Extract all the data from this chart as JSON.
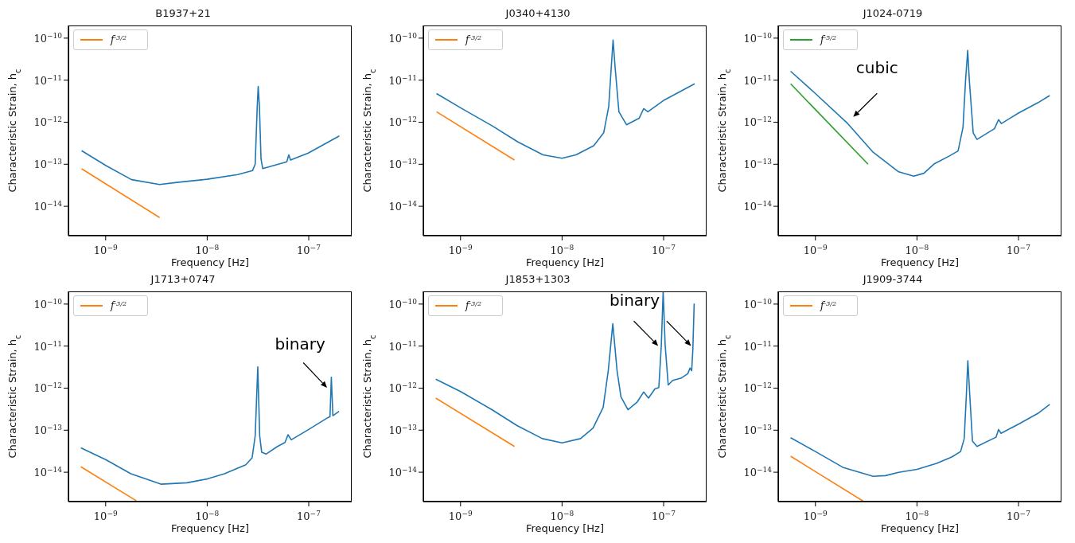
{
  "chart_data": [
    {
      "type": "line",
      "title": "B1937+21",
      "xlabel": "Frequency [Hz]",
      "ylabel": "Characteristic Strain, h$_{c}$",
      "log": "xy",
      "legend": "top left",
      "xlim": [
        4.3e-10,
        2.65e-07
      ],
      "ylim": [
        2e-15,
        2e-10
      ],
      "xticks": [
        {
          "value": 1e-09,
          "label": "10$^{−9}$"
        },
        {
          "value": 1e-08,
          "label": "10$^{−8}$"
        },
        {
          "value": 1e-07,
          "label": "10$^{−7}$"
        }
      ],
      "yticks": [
        {
          "value": 1e-14,
          "label": "10$^{−14}$"
        },
        {
          "value": 1e-13,
          "label": "10$^{−13}$"
        },
        {
          "value": 1e-12,
          "label": "10$^{−12}$"
        },
        {
          "value": 1e-11,
          "label": "10$^{−11}$"
        },
        {
          "value": 1e-10,
          "label": "10$^{−10}$"
        }
      ],
      "series": [
        {
          "color": "#1f77b4",
          "x": [
            5.8e-10,
            1e-09,
            1.8e-09,
            3.4e-09,
            5e-09,
            1e-08,
            2e-08,
            2.8e-08,
            2.97e-08,
            3.11e-08,
            3.18e-08,
            3.27e-08,
            3.39e-08,
            3.52e-08,
            6.08e-08,
            6.36e-08,
            6.62e-08,
            9.9e-08,
            2e-07
          ],
          "values": [
            2.1e-13,
            9.4e-14,
            4.3e-14,
            3.3e-14,
            3.7e-14,
            4.4e-14,
            5.7e-14,
            7.1e-14,
            1e-13,
            2.3e-12,
            7.1e-12,
            2.3e-12,
            1.35e-13,
            7.9e-14,
            1.14e-13,
            1.67e-13,
            1.26e-13,
            1.85e-13,
            4.7e-13
          ]
        },
        {
          "name": "f$^{-3/2}$",
          "color": "#ff7f0e",
          "x": [
            5.8e-10,
            3.4e-09
          ],
          "values": [
            7.8e-14,
            5.4e-15
          ]
        }
      ]
    },
    {
      "type": "line",
      "title": "J0340+4130",
      "xlabel": "Frequency [Hz]",
      "ylabel": "Characteristic Strain, h$_{c}$",
      "log": "xy",
      "legend": "top left",
      "xlim": [
        4.3e-10,
        2.65e-07
      ],
      "ylim": [
        2e-15,
        2e-10
      ],
      "xticks": [
        {
          "value": 1e-09,
          "label": "10$^{−9}$"
        },
        {
          "value": 1e-08,
          "label": "10$^{−8}$"
        },
        {
          "value": 1e-07,
          "label": "10$^{−7}$"
        }
      ],
      "yticks": [
        {
          "value": 1e-14,
          "label": "10$^{−14}$"
        },
        {
          "value": 1e-13,
          "label": "10$^{−13}$"
        },
        {
          "value": 1e-12,
          "label": "10$^{−12}$"
        },
        {
          "value": 1e-11,
          "label": "10$^{−11}$"
        },
        {
          "value": 1e-10,
          "label": "10$^{−10}$"
        }
      ],
      "series": [
        {
          "color": "#1f77b4",
          "x": [
            5.8e-10,
            1e-09,
            2.07e-09,
            3.67e-09,
            6.5e-09,
            1e-08,
            1.37e-08,
            2.05e-08,
            2.57e-08,
            2.88e-08,
            3.05e-08,
            3.18e-08,
            3.33e-08,
            3.63e-08,
            4.31e-08,
            5.74e-08,
            6.36e-08,
            7e-08,
            1.02e-07,
            2.02e-07
          ],
          "values": [
            4.8e-12,
            2.2e-12,
            8.1e-13,
            3.4e-13,
            1.67e-13,
            1.39e-13,
            1.67e-13,
            2.76e-13,
            5.6e-13,
            2.36e-12,
            2e-11,
            9e-11,
            2e-11,
            1.77e-12,
            8.7e-13,
            1.24e-12,
            2.1e-12,
            1.77e-12,
            3.4e-12,
            8.2e-12
          ]
        },
        {
          "name": "f$^{-3/2}$",
          "color": "#ff7f0e",
          "x": [
            5.8e-10,
            3.4e-09
          ],
          "values": [
            1.77e-12,
            1.26e-13
          ]
        }
      ]
    },
    {
      "type": "line",
      "title": "J1024-0719",
      "xlabel": "Frequency [Hz]",
      "ylabel": "Characteristic Strain, h$_{c}$",
      "log": "xy",
      "legend": "top left",
      "xlim": [
        4.3e-10,
        2.65e-07
      ],
      "ylim": [
        2e-15,
        2e-10
      ],
      "xticks": [
        {
          "value": 1e-09,
          "label": "10$^{−9}$"
        },
        {
          "value": 1e-08,
          "label": "10$^{−8}$"
        },
        {
          "value": 1e-07,
          "label": "10$^{−7}$"
        }
      ],
      "yticks": [
        {
          "value": 1e-14,
          "label": "10$^{−14}$"
        },
        {
          "value": 1e-13,
          "label": "10$^{−13}$"
        },
        {
          "value": 1e-12,
          "label": "10$^{−12}$"
        },
        {
          "value": 1e-11,
          "label": "10$^{−11}$"
        },
        {
          "value": 1e-10,
          "label": "10$^{−10}$"
        }
      ],
      "series": [
        {
          "color": "#1f77b4",
          "x": [
            5.7e-10,
            1e-09,
            2.08e-09,
            3.7e-09,
            6.6e-09,
            9.3e-09,
            1.17e-08,
            1.47e-08,
            2.07e-08,
            2.54e-08,
            2.84e-08,
            3.01e-08,
            3.16e-08,
            3.28e-08,
            3.58e-08,
            3.9e-08,
            5.8e-08,
            6.36e-08,
            6.8e-08,
            1e-07,
            1.55e-07,
            2.03e-07
          ],
          "values": [
            1.63e-11,
            4.8e-12,
            9.3e-13,
            1.93e-13,
            6.6e-14,
            5.2e-14,
            6.1e-14,
            1.01e-13,
            1.56e-13,
            2.07e-13,
            7.5e-13,
            9.9e-12,
            5.1e-11,
            9.9e-12,
            5.6e-13,
            3.9e-13,
            7e-13,
            1.15e-12,
            9.3e-13,
            1.65e-12,
            2.9e-12,
            4.3e-12
          ]
        },
        {
          "name": "f$^{-5/2}$",
          "color": "#2ca02c",
          "x": [
            5.7e-10,
            3.3e-09
          ],
          "values": [
            8.2e-12,
            1e-13
          ]
        }
      ],
      "annotations": [
        "cubic"
      ]
    },
    {
      "type": "line",
      "title": "J1713+0747",
      "xlabel": "Frequency [Hz]",
      "ylabel": "Characteristic Strain, h$_{c}$",
      "log": "xy",
      "legend": "top left",
      "xlim": [
        4.3e-10,
        2.65e-07
      ],
      "ylim": [
        2e-15,
        2e-10
      ],
      "xticks": [
        {
          "value": 1e-09,
          "label": "10$^{−9}$"
        },
        {
          "value": 1e-08,
          "label": "10$^{−8}$"
        },
        {
          "value": 1e-07,
          "label": "10$^{−7}$"
        }
      ],
      "yticks": [
        {
          "value": 1e-14,
          "label": "10$^{−14}$"
        },
        {
          "value": 1e-13,
          "label": "10$^{−13}$"
        },
        {
          "value": 1e-12,
          "label": "10$^{−12}$"
        },
        {
          "value": 1e-11,
          "label": "10$^{−11}$"
        },
        {
          "value": 1e-10,
          "label": "10$^{−10}$"
        }
      ],
      "series": [
        {
          "color": "#1f77b4",
          "x": [
            5.7e-10,
            1e-09,
            1.77e-09,
            3.5e-09,
            6.3e-09,
            1e-08,
            1.48e-08,
            2.4e-08,
            2.77e-08,
            2.97e-08,
            3.15e-08,
            3.29e-08,
            3.44e-08,
            3.8e-08,
            4.92e-08,
            5.84e-08,
            6.25e-08,
            6.73e-08,
            1e-07,
            1.55e-07,
            1.62e-07,
            1.67e-07,
            1.73e-07,
            1.99e-07
          ],
          "values": [
            3.8e-14,
            2e-14,
            9.2e-15,
            5.2e-15,
            5.6e-15,
            6.9e-15,
            9.2e-15,
            1.5e-14,
            2.2e-14,
            7.3e-14,
            3.2e-12,
            7.3e-14,
            3e-14,
            2.7e-14,
            4.1e-14,
            5.1e-14,
            7.8e-14,
            5.9e-14,
            1.04e-13,
            2e-13,
            2.1e-13,
            1.82e-12,
            2.2e-13,
            2.8e-13
          ]
        },
        {
          "name": "f$^{-3/2}$",
          "color": "#ff7f0e",
          "x": [
            5.7e-10,
            2e-09
          ],
          "values": [
            1.35e-14,
            2.1e-15
          ]
        }
      ],
      "annotations": [
        "binary"
      ]
    },
    {
      "type": "line",
      "title": "J1853+1303",
      "xlabel": "Frequency [Hz]",
      "ylabel": "Characteristic Strain, h$_{c}$",
      "log": "xy",
      "legend": "top left",
      "xlim": [
        4.3e-10,
        2.65e-07
      ],
      "ylim": [
        2e-15,
        2e-10
      ],
      "xticks": [
        {
          "value": 1e-09,
          "label": "10$^{−9}$"
        },
        {
          "value": 1e-08,
          "label": "10$^{−8}$"
        },
        {
          "value": 1e-07,
          "label": "10$^{−7}$"
        }
      ],
      "yticks": [
        {
          "value": 1e-14,
          "label": "10$^{−14}$"
        },
        {
          "value": 1e-13,
          "label": "10$^{−13}$"
        },
        {
          "value": 1e-12,
          "label": "10$^{−12}$"
        },
        {
          "value": 1e-11,
          "label": "10$^{−11}$"
        },
        {
          "value": 1e-10,
          "label": "10$^{−10}$"
        }
      ],
      "series": [
        {
          "color": "#1f77b4",
          "x": [
            5.7e-10,
            1e-09,
            2.05e-09,
            3.6e-09,
            6.4e-09,
            1e-08,
            1.52e-08,
            2.02e-08,
            2.54e-08,
            2.85e-08,
            3.16e-08,
            3.48e-08,
            3.8e-08,
            4.46e-08,
            5.5e-08,
            6.36e-08,
            7.1e-08,
            8.2e-08,
            8.97e-08,
            9.5e-08,
            9.9e-08,
            1.035e-07,
            1.11e-07,
            1.23e-07,
            1.5e-07,
            1.73e-07,
            1.82e-07,
            1.89e-07,
            1.94e-07,
            2e-07
          ],
          "values": [
            1.63e-12,
            8.3e-13,
            3.05e-13,
            1.29e-13,
            6.3e-14,
            5e-14,
            6.3e-14,
            1.12e-13,
            3.5e-13,
            2.6e-12,
            3.4e-11,
            2.6e-12,
            6.2e-13,
            3.05e-13,
            4.7e-13,
            8.1e-13,
            5.8e-13,
            9.6e-13,
            1.03e-12,
            1.09e-11,
            2e-10,
            1.09e-11,
            1.19e-12,
            1.53e-12,
            1.75e-12,
            2.2e-12,
            3e-12,
            2.6e-12,
            8.2e-12,
            1.03e-10
          ]
        },
        {
          "name": "f$^{-3/2}$",
          "color": "#ff7f0e",
          "x": [
            5.7e-10,
            3.4e-09
          ],
          "values": [
            5.8e-13,
            4.1e-14
          ]
        }
      ],
      "annotations": [
        "binary"
      ]
    },
    {
      "type": "line",
      "title": "J1909-3744",
      "xlabel": "Frequency [Hz]",
      "ylabel": "Characteristic Strain, h$_{c}$",
      "log": "xy",
      "legend": "top left",
      "xlim": [
        4.3e-10,
        2.65e-07
      ],
      "ylim": [
        2e-15,
        2e-10
      ],
      "xticks": [
        {
          "value": 1e-09,
          "label": "10$^{−9}$"
        },
        {
          "value": 1e-08,
          "label": "10$^{−8}$"
        },
        {
          "value": 1e-07,
          "label": "10$^{−7}$"
        }
      ],
      "yticks": [
        {
          "value": 1e-14,
          "label": "10$^{−14}$"
        },
        {
          "value": 1e-13,
          "label": "10$^{−13}$"
        },
        {
          "value": 1e-12,
          "label": "10$^{−12}$"
        },
        {
          "value": 1e-11,
          "label": "10$^{−11}$"
        },
        {
          "value": 1e-10,
          "label": "10$^{−10}$"
        }
      ],
      "series": [
        {
          "color": "#1f77b4",
          "x": [
            5.7e-10,
            1e-09,
            1.86e-09,
            3.7e-09,
            4.9e-09,
            6.6e-09,
            1e-08,
            1.56e-08,
            2.2e-08,
            2.69e-08,
            2.92e-08,
            3.06e-08,
            3.17e-08,
            3.32e-08,
            3.52e-08,
            3.9e-08,
            6e-08,
            6.36e-08,
            6.73e-08,
            1e-07,
            1.55e-07,
            2.03e-07
          ],
          "values": [
            6.6e-14,
            3.1e-14,
            1.31e-14,
            8e-15,
            8.3e-15,
            9.9e-15,
            1.17e-14,
            1.63e-14,
            2.3e-14,
            3.1e-14,
            6.3e-14,
            6.2e-13,
            4.5e-12,
            6.2e-13,
            5.5e-14,
            4.1e-14,
            6.8e-14,
            1.04e-13,
            8.4e-14,
            1.39e-13,
            2.5e-13,
            4.1e-13
          ]
        },
        {
          "name": "f$^{-3/2}$",
          "color": "#ff7f0e",
          "x": [
            5.7e-10,
            3e-09
          ],
          "values": [
            2.4e-14,
            2e-15
          ]
        }
      ]
    }
  ]
}
